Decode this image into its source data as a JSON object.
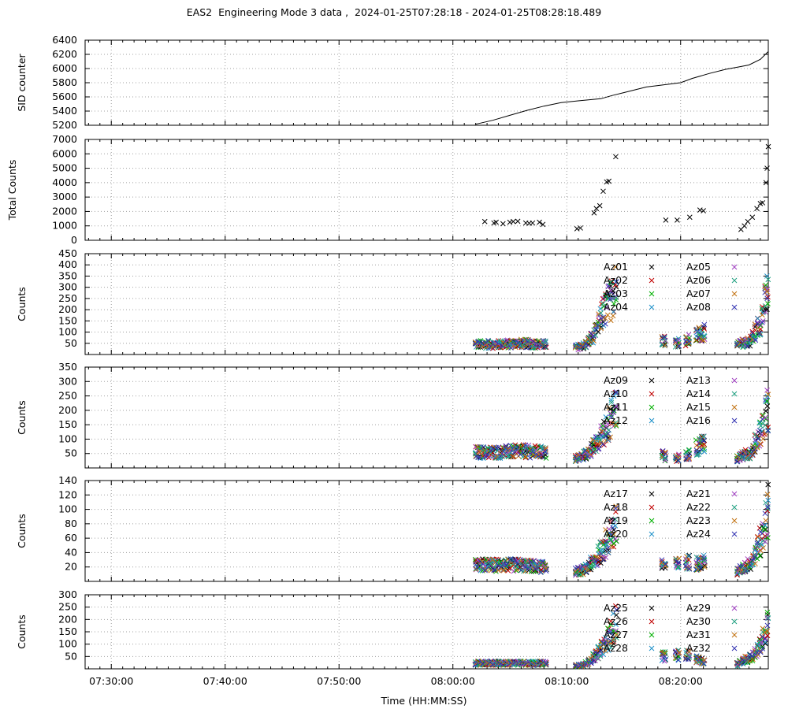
{
  "title": "EAS2  Engineering Mode 3 data ,  2024-01-25T07:28:18 - 2024-01-25T08:28:18.489",
  "xlabel": "Time (HH:MM:SS)",
  "colors": {
    "grid": "#a0a0a0",
    "series": [
      "#000000",
      "#c00000",
      "#00b000",
      "#1e90c8",
      "#a040c0",
      "#20a080",
      "#c07010",
      "#3030b0"
    ]
  },
  "chart_data": [
    {
      "type": "line",
      "ylabel": "SID counter",
      "ylim": [
        5200,
        6400
      ],
      "yticks": [
        5200,
        5400,
        5600,
        5800,
        6000,
        6200,
        6400
      ],
      "xlim_min": [
        -2.3,
        57.7
      ],
      "xticks_min": [
        0,
        10,
        20,
        30,
        40,
        50
      ],
      "xtick_labels": [
        "07:30:00",
        "07:40:00",
        "07:50:00",
        "08:00:00",
        "08:10:00",
        "08:20:00"
      ],
      "series": [
        {
          "x": [
            32.0,
            33.5,
            35.0,
            36.5,
            38.0,
            39.5,
            41.0,
            42.0,
            43.0,
            44.0,
            45.0,
            46.0,
            47.0,
            48.0,
            50.0,
            51.0,
            52.5,
            54.0,
            55.0,
            56.0,
            57.0,
            57.7
          ],
          "y": [
            5215,
            5270,
            5340,
            5410,
            5470,
            5520,
            5545,
            5560,
            5575,
            5620,
            5660,
            5700,
            5740,
            5760,
            5800,
            5860,
            5930,
            5990,
            6020,
            6050,
            6130,
            6240
          ]
        }
      ]
    },
    {
      "type": "scatter",
      "ylabel": "Total Counts",
      "ylim": [
        0,
        7000
      ],
      "yticks": [
        0,
        1000,
        2000,
        3000,
        4000,
        5000,
        6000,
        7000
      ],
      "series": [
        {
          "x": [
            32.8,
            33.6,
            33.8,
            34.4,
            35.0,
            35.3,
            35.7,
            36.4,
            36.7,
            37.0,
            37.6,
            37.9,
            40.9,
            41.2,
            42.4,
            42.6,
            42.9,
            43.2,
            43.5,
            43.7,
            44.3,
            48.7,
            49.7,
            50.8,
            51.7,
            52.0,
            55.3,
            55.6,
            55.9,
            56.3,
            56.7,
            57.0,
            57.2,
            57.5,
            57.6,
            57.7
          ],
          "y": [
            1300,
            1200,
            1250,
            1150,
            1250,
            1300,
            1320,
            1200,
            1180,
            1200,
            1250,
            1100,
            800,
            850,
            1900,
            2200,
            2400,
            3400,
            4050,
            4100,
            5800,
            1400,
            1400,
            1600,
            2100,
            2050,
            750,
            1000,
            1300,
            1600,
            2200,
            2550,
            2600,
            4000,
            5000,
            6500
          ]
        }
      ]
    },
    {
      "type": "scatter",
      "ylabel": "Counts",
      "ylim": [
        0,
        450
      ],
      "yticks": [
        50,
        100,
        150,
        200,
        250,
        300,
        350,
        400,
        450
      ],
      "legend_position": "top-right",
      "legend": [
        "Az01",
        "Az02",
        "Az03",
        "Az04",
        "Az05",
        "Az06",
        "Az07",
        "Az08"
      ],
      "envelope": {
        "x": [
          32.0,
          34.0,
          36.0,
          38.0,
          40.8,
          41.6,
          42.6,
          43.0,
          43.5,
          44.0,
          44.5,
          48.5,
          49.5,
          50.5,
          51.6,
          52.3,
          55.0,
          55.6,
          56.2,
          56.6,
          57.0,
          57.3,
          57.6
        ],
        "y": [
          50,
          50,
          55,
          50,
          35,
          45,
          110,
          190,
          230,
          290,
          360,
          70,
          60,
          65,
          100,
          120,
          45,
          60,
          70,
          120,
          160,
          220,
          300
        ]
      }
    },
    {
      "type": "scatter",
      "ylabel": "Counts",
      "ylim": [
        0,
        350
      ],
      "yticks": [
        50,
        100,
        150,
        200,
        250,
        300,
        350
      ],
      "legend_position": "top-right",
      "legend": [
        "Az09",
        "Az10",
        "Az11",
        "Az12",
        "Az13",
        "Az14",
        "Az15",
        "Az16"
      ],
      "envelope": {
        "x": [
          32.0,
          34.0,
          36.0,
          38.0,
          40.8,
          41.6,
          42.6,
          43.0,
          43.5,
          44.0,
          44.5,
          48.5,
          49.5,
          50.5,
          51.6,
          52.3,
          55.0,
          55.6,
          56.2,
          56.6,
          57.0,
          57.3,
          57.6
        ],
        "y": [
          60,
          60,
          65,
          60,
          35,
          50,
          90,
          120,
          160,
          200,
          250,
          45,
          40,
          45,
          85,
          110,
          35,
          50,
          60,
          100,
          140,
          170,
          230
        ]
      }
    },
    {
      "type": "scatter",
      "ylabel": "Counts",
      "ylim": [
        0,
        140
      ],
      "yticks": [
        20,
        40,
        60,
        80,
        100,
        120,
        140
      ],
      "legend_position": "top-right",
      "legend": [
        "Az17",
        "Az18",
        "Az19",
        "Az20",
        "Az21",
        "Az22",
        "Az23",
        "Az24"
      ],
      "envelope": {
        "x": [
          32.0,
          34.0,
          36.0,
          38.0,
          40.8,
          41.6,
          42.6,
          43.0,
          43.5,
          44.0,
          44.5,
          48.5,
          49.5,
          50.5,
          51.6,
          52.3,
          55.0,
          55.6,
          56.2,
          56.6,
          57.0,
          57.3,
          57.6
        ],
        "y": [
          25,
          25,
          25,
          22,
          15,
          18,
          35,
          45,
          60,
          75,
          90,
          25,
          25,
          30,
          28,
          30,
          15,
          22,
          30,
          45,
          60,
          80,
          110
        ]
      }
    },
    {
      "type": "scatter",
      "ylabel": "Counts",
      "ylim": [
        0,
        300
      ],
      "yticks": [
        50,
        100,
        150,
        200,
        250,
        300
      ],
      "legend_position": "top-right",
      "legend": [
        "Az25",
        "Az26",
        "Az27",
        "Az28",
        "Az29",
        "Az30",
        "Az31",
        "Az32"
      ],
      "envelope": {
        "x": [
          32.0,
          34.0,
          36.0,
          38.0,
          40.8,
          41.6,
          42.6,
          43.0,
          43.5,
          44.0,
          44.5,
          48.5,
          49.5,
          50.5,
          51.6,
          52.3,
          55.0,
          55.6,
          56.2,
          56.6,
          57.0,
          57.3,
          57.6
        ],
        "y": [
          25,
          25,
          25,
          25,
          15,
          20,
          60,
          90,
          120,
          170,
          230,
          55,
          60,
          65,
          40,
          25,
          20,
          40,
          50,
          80,
          100,
          150,
          220
        ]
      }
    }
  ]
}
